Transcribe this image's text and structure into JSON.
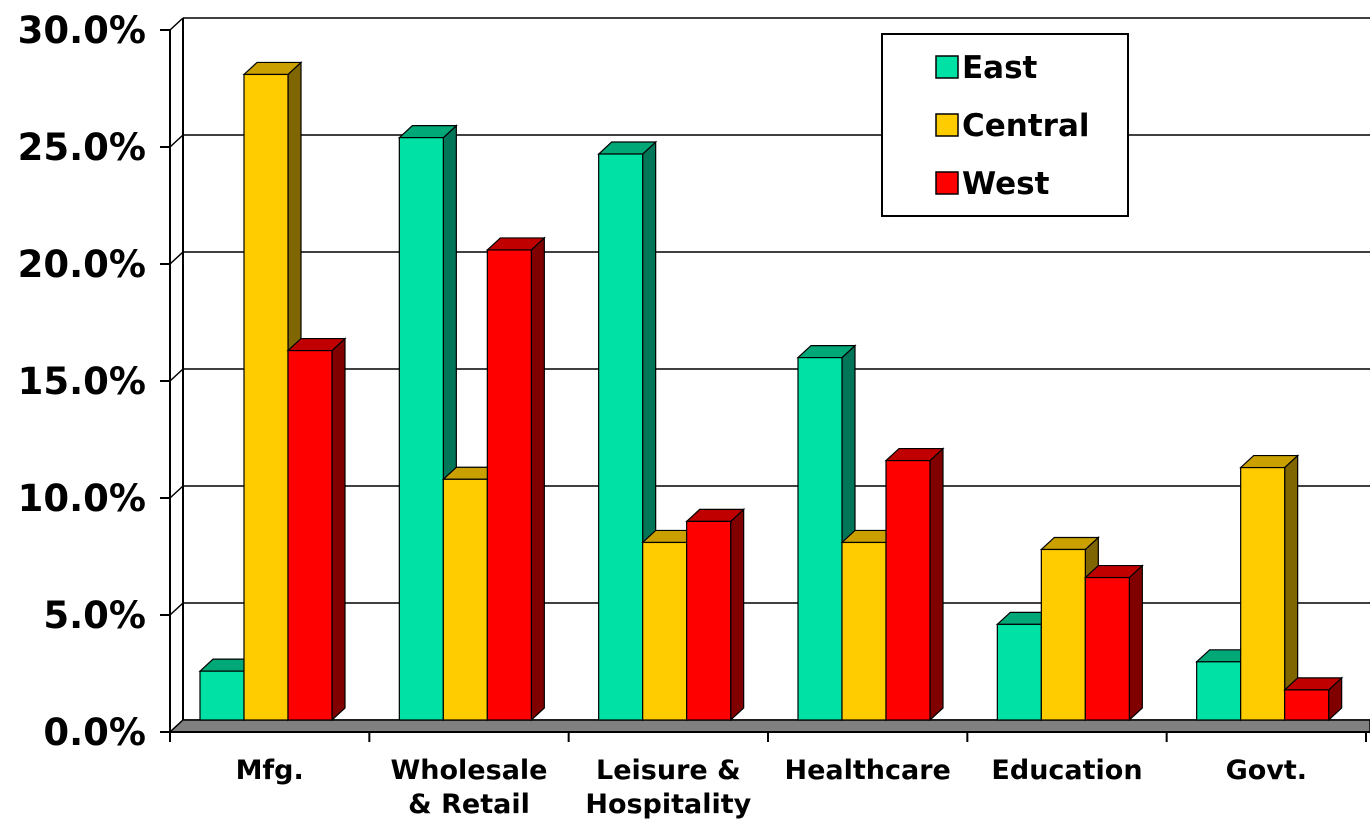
{
  "chart_data": {
    "type": "bar",
    "style": "3d-clustered-column",
    "categories": [
      [
        "Mfg."
      ],
      [
        "Wholesale",
        "& Retail"
      ],
      [
        "Leisure &",
        "Hospitality"
      ],
      [
        "Healthcare"
      ],
      [
        "Education"
      ],
      [
        "Govt."
      ]
    ],
    "series": [
      {
        "name": "East",
        "color": "#00E1A5",
        "side_color": "#007558",
        "top_color": "#00A878",
        "values": [
          2.6,
          25.4,
          24.7,
          16.0,
          4.6,
          3.0
        ]
      },
      {
        "name": "Central",
        "color": "#FFCC00",
        "side_color": "#7F6600",
        "top_color": "#C9A000",
        "values": [
          28.1,
          10.8,
          8.1,
          8.1,
          7.8,
          11.3
        ]
      },
      {
        "name": "West",
        "color": "#FF0000",
        "side_color": "#800000",
        "top_color": "#C00000",
        "values": [
          16.3,
          20.6,
          9.0,
          11.6,
          6.6,
          1.8
        ]
      }
    ],
    "y_ticks": [
      "0.0%",
      "5.0%",
      "10.0%",
      "15.0%",
      "20.0%",
      "25.0%",
      "30.0%"
    ],
    "ylim": [
      0,
      30
    ],
    "title": "",
    "xlabel": "",
    "ylabel": "",
    "grid": true,
    "legend_position": "top-right"
  }
}
